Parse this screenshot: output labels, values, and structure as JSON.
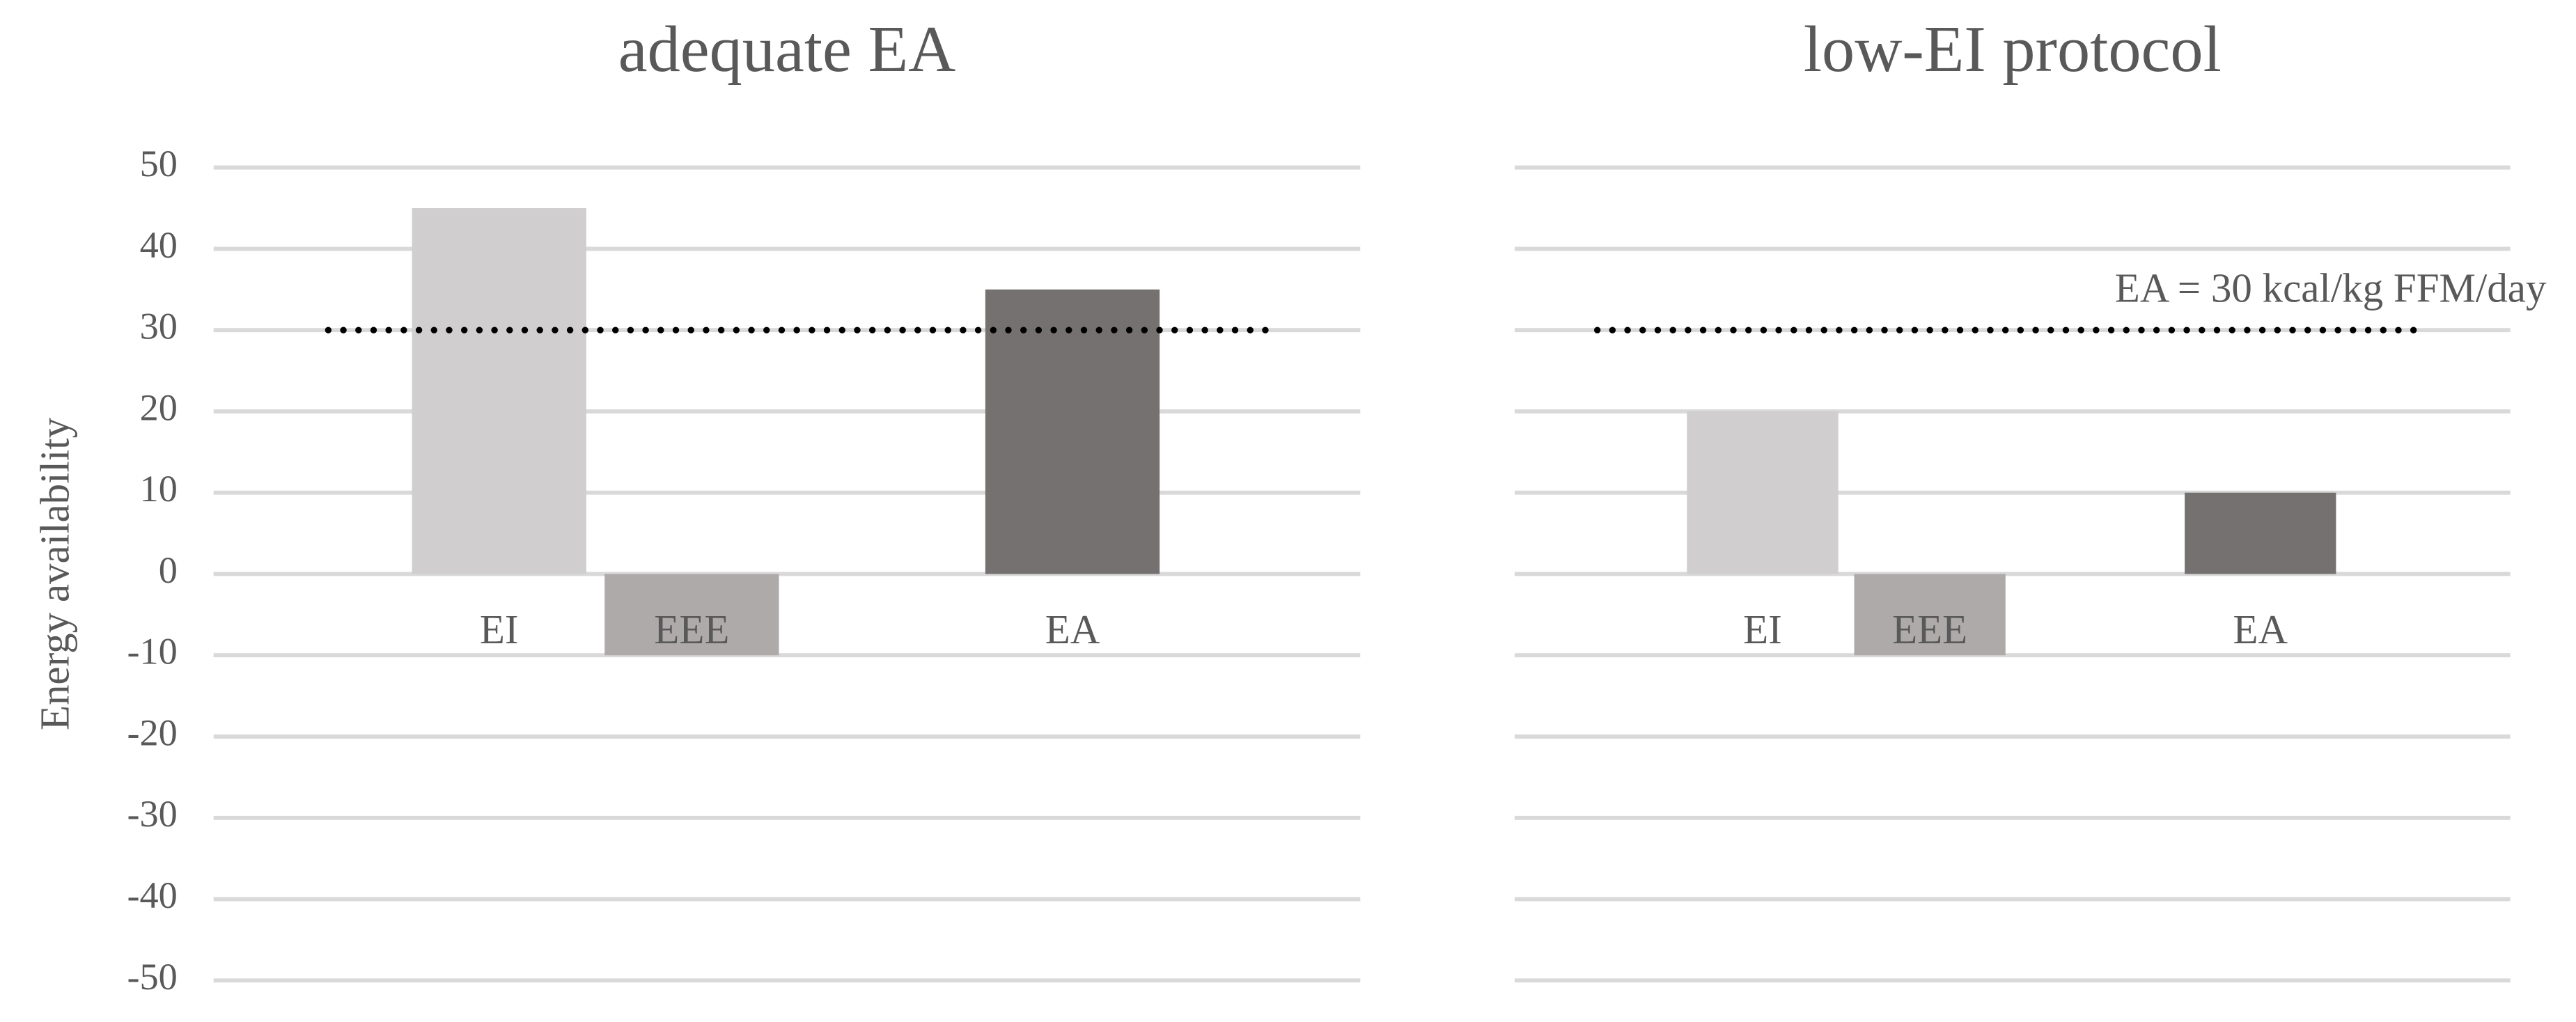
{
  "chart_data": [
    {
      "type": "bar",
      "title": "adequate EA",
      "y_label": "Energy availability",
      "categories": [
        "EI",
        "EEE",
        "EA"
      ],
      "values": [
        45,
        -10,
        35
      ],
      "colors": [
        "#d0cece",
        "#aeaaaa",
        "#767171"
      ],
      "ylim": [
        -50,
        50
      ],
      "yticks": [
        -50,
        -40,
        -30,
        -20,
        -10,
        0,
        10,
        20,
        30,
        40,
        50
      ],
      "show_tick_labels": true,
      "grid": true,
      "reference_line": 30
    },
    {
      "type": "bar",
      "title": "low-EI protocol",
      "categories": [
        "EI",
        "EEE",
        "EA"
      ],
      "values": [
        20,
        -10,
        10
      ],
      "colors": [
        "#d0cece",
        "#aeaaaa",
        "#767171"
      ],
      "ylim": [
        -50,
        50
      ],
      "yticks": [
        -50,
        -40,
        -30,
        -20,
        -10,
        0,
        10,
        20,
        30,
        40,
        50
      ],
      "show_tick_labels": false,
      "grid": true,
      "reference_line": 30,
      "annotation": "EA = 30 kcal/kg FFM/day"
    }
  ]
}
